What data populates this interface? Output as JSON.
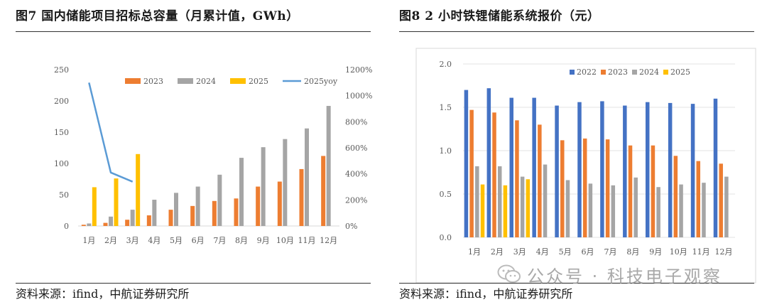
{
  "left": {
    "title": "图7  国内储能项目招标总容量（月累计值，GWh）",
    "source": "资料来源：ifind，中航证券研究所"
  },
  "right": {
    "title": "图8  2 小时铁锂储能系统报价（元）",
    "source": "资料来源：ifind，中航证券研究所"
  },
  "watermark": {
    "text": "公众号 · 科技电子观察",
    "icon": "wechat-icon"
  },
  "chart_data": [
    {
      "type": "bar",
      "title": "国内储能项目招标总容量（月累计值，GWh）",
      "categories": [
        "1月",
        "2月",
        "3月",
        "4月",
        "5月",
        "6月",
        "7月",
        "8月",
        "9月",
        "10月",
        "11月",
        "12月"
      ],
      "series": [
        {
          "name": "2023",
          "color": "#ed7d31",
          "values": [
            2,
            5,
            10,
            17,
            26,
            32,
            40,
            44,
            63,
            71,
            91,
            112
          ]
        },
        {
          "name": "2024",
          "color": "#a5a5a5",
          "values": [
            4,
            15,
            26,
            42,
            53,
            63,
            82,
            109,
            126,
            139,
            156,
            192
          ]
        },
        {
          "name": "2025",
          "color": "#ffc000",
          "values": [
            62,
            76,
            115,
            null,
            null,
            null,
            null,
            null,
            null,
            null,
            null,
            null
          ]
        },
        {
          "name": "2025yoy",
          "type": "line",
          "axis": "right",
          "color": "#5b9bd5",
          "values": [
            1100,
            410,
            340,
            null,
            null,
            null,
            null,
            null,
            null,
            null,
            null,
            null
          ]
        }
      ],
      "ylim": [
        0,
        250
      ],
      "yticks": [
        0,
        50,
        100,
        150,
        200,
        250
      ],
      "y2lim": [
        0,
        1200
      ],
      "y2ticks": [
        "0%",
        "200%",
        "400%",
        "600%",
        "800%",
        "1000%",
        "1200%"
      ],
      "legend": "top-right"
    },
    {
      "type": "bar",
      "title": "2 小时铁锂储能系统报价（元）",
      "categories": [
        "1月",
        "2月",
        "3月",
        "4月",
        "5月",
        "6月",
        "7月",
        "8月",
        "9月",
        "10月",
        "11月",
        "12月"
      ],
      "series": [
        {
          "name": "2022",
          "color": "#4472c4",
          "values": [
            1.7,
            1.72,
            1.61,
            1.61,
            1.52,
            1.56,
            1.57,
            1.52,
            1.56,
            1.55,
            1.54,
            1.6
          ]
        },
        {
          "name": "2023",
          "color": "#ed7d31",
          "values": [
            1.47,
            1.44,
            1.35,
            1.3,
            1.12,
            1.14,
            1.13,
            1.06,
            1.06,
            0.94,
            0.88,
            0.85
          ]
        },
        {
          "name": "2024",
          "color": "#a5a5a5",
          "values": [
            0.82,
            0.82,
            0.7,
            0.84,
            0.66,
            0.62,
            0.6,
            0.69,
            0.58,
            0.61,
            0.63,
            0.7
          ]
        },
        {
          "name": "2025",
          "color": "#ffc000",
          "values": [
            0.61,
            0.6,
            0.67,
            null,
            null,
            null,
            null,
            null,
            null,
            null,
            null,
            null
          ]
        }
      ],
      "ylim": [
        0,
        2.0
      ],
      "yticks": [
        "0.0",
        "0.5",
        "1.0",
        "1.5",
        "2.0"
      ],
      "legend": "top"
    }
  ]
}
